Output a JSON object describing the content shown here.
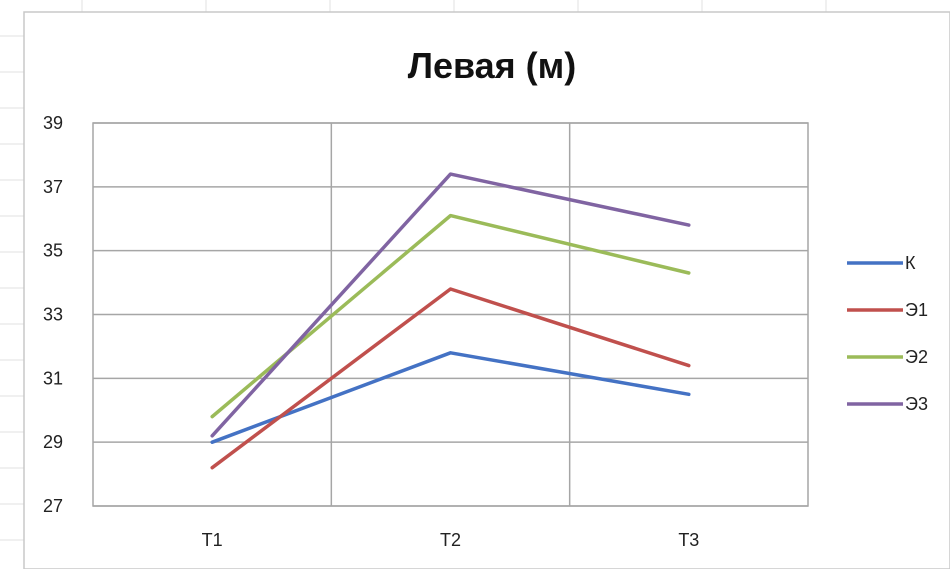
{
  "chart_data": {
    "type": "line",
    "title": "Левая (м)",
    "categories": [
      "Т1",
      "Т2",
      "Т3"
    ],
    "ylim": [
      27,
      39
    ],
    "yticks": [
      27,
      29,
      31,
      33,
      35,
      37,
      39
    ],
    "grid": true,
    "legend_position": "right",
    "series": [
      {
        "name": "К",
        "color": "#4472c4",
        "values": [
          29.0,
          31.8,
          30.5
        ]
      },
      {
        "name": "Э1",
        "color": "#c0504d",
        "values": [
          28.2,
          33.8,
          31.4
        ]
      },
      {
        "name": "Э2",
        "color": "#9bbb59",
        "values": [
          29.8,
          36.1,
          34.3
        ]
      },
      {
        "name": "Э3",
        "color": "#8064a2",
        "values": [
          29.2,
          37.4,
          35.8
        ]
      }
    ]
  }
}
